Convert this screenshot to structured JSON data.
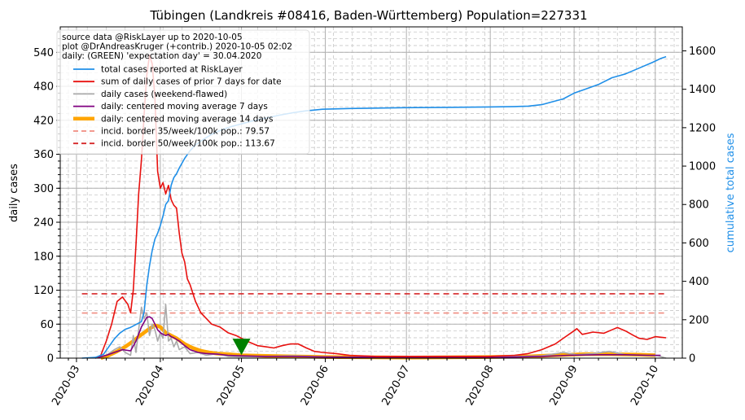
{
  "chart_data": {
    "type": "line",
    "title": "Tübingen (Landkreis #08416, Baden-Württemberg) Population=227331",
    "ylabel_left": "daily cases",
    "ylabel_right": "cumulative total cases",
    "ylim_left": [
      0,
      585
    ],
    "ylim_right": [
      0,
      1725
    ],
    "xlim": [
      "2020-02-24",
      "2020-10-11"
    ],
    "x_ticks": [
      "2020-03",
      "2020-04",
      "2020-05",
      "2020-06",
      "2020-07",
      "2020-08",
      "2020-09",
      "2020-10"
    ],
    "x_tick_dates": [
      "2020-03-01",
      "2020-04-01",
      "2020-05-01",
      "2020-06-01",
      "2020-07-01",
      "2020-08-01",
      "2020-09-01",
      "2020-10-01"
    ],
    "y_ticks_left": [
      0,
      60,
      120,
      180,
      240,
      300,
      360,
      420,
      480,
      540
    ],
    "y_ticks_right": [
      0,
      200,
      400,
      600,
      800,
      1000,
      1200,
      1400,
      1600
    ],
    "grid": true,
    "legend_placement": "top-left",
    "legend_header": [
      "source data @RiskLayer up to 2020-10-05",
      "plot @DrAndreasKruger (+contrib.) 2020-10-05 02:02",
      "daily: (GREEN) 'expectation day' = 30.04.2020"
    ],
    "series": [
      {
        "name": "total cases reported at RiskLayer",
        "axis": "right",
        "color": "#1f8fe8",
        "style": "solid",
        "points": [
          [
            "2020-03-03",
            0
          ],
          [
            "2020-03-08",
            4
          ],
          [
            "2020-03-11",
            20
          ],
          [
            "2020-03-13",
            60
          ],
          [
            "2020-03-15",
            100
          ],
          [
            "2020-03-17",
            130
          ],
          [
            "2020-03-19",
            150
          ],
          [
            "2020-03-21",
            160
          ],
          [
            "2020-03-23",
            175
          ],
          [
            "2020-03-25",
            190
          ],
          [
            "2020-03-26",
            240
          ],
          [
            "2020-03-27",
            380
          ],
          [
            "2020-03-28",
            480
          ],
          [
            "2020-03-29",
            560
          ],
          [
            "2020-03-30",
            620
          ],
          [
            "2020-03-31",
            650
          ],
          [
            "2020-04-01",
            690
          ],
          [
            "2020-04-02",
            740
          ],
          [
            "2020-04-03",
            800
          ],
          [
            "2020-04-04",
            820
          ],
          [
            "2020-04-05",
            900
          ],
          [
            "2020-04-06",
            940
          ],
          [
            "2020-04-07",
            960
          ],
          [
            "2020-04-08",
            990
          ],
          [
            "2020-04-10",
            1040
          ],
          [
            "2020-04-12",
            1080
          ],
          [
            "2020-04-14",
            1110
          ],
          [
            "2020-04-17",
            1140
          ],
          [
            "2020-04-20",
            1165
          ],
          [
            "2020-04-23",
            1185
          ],
          [
            "2020-04-27",
            1205
          ],
          [
            "2020-05-01",
            1220
          ],
          [
            "2020-05-05",
            1235
          ],
          [
            "2020-05-10",
            1250
          ],
          [
            "2020-05-15",
            1265
          ],
          [
            "2020-05-20",
            1278
          ],
          [
            "2020-05-25",
            1288
          ],
          [
            "2020-05-31",
            1296
          ],
          [
            "2020-06-10",
            1300
          ],
          [
            "2020-06-20",
            1302
          ],
          [
            "2020-06-30",
            1304
          ],
          [
            "2020-07-15",
            1306
          ],
          [
            "2020-07-31",
            1308
          ],
          [
            "2020-08-10",
            1310
          ],
          [
            "2020-08-15",
            1312
          ],
          [
            "2020-08-20",
            1320
          ],
          [
            "2020-08-24",
            1335
          ],
          [
            "2020-08-28",
            1350
          ],
          [
            "2020-09-01",
            1380
          ],
          [
            "2020-09-05",
            1400
          ],
          [
            "2020-09-10",
            1425
          ],
          [
            "2020-09-15",
            1460
          ],
          [
            "2020-09-20",
            1480
          ],
          [
            "2020-09-25",
            1510
          ],
          [
            "2020-09-30",
            1540
          ],
          [
            "2020-10-03",
            1560
          ],
          [
            "2020-10-05",
            1570
          ]
        ]
      },
      {
        "name": "sum of daily cases of prior 7 days for date",
        "axis": "left",
        "color": "#e8110f",
        "style": "solid",
        "points": [
          [
            "2020-03-08",
            0
          ],
          [
            "2020-03-10",
            5
          ],
          [
            "2020-03-12",
            30
          ],
          [
            "2020-03-14",
            60
          ],
          [
            "2020-03-16",
            100
          ],
          [
            "2020-03-18",
            108
          ],
          [
            "2020-03-20",
            95
          ],
          [
            "2020-03-21",
            80
          ],
          [
            "2020-03-22",
            120
          ],
          [
            "2020-03-23",
            200
          ],
          [
            "2020-03-24",
            290
          ],
          [
            "2020-03-25",
            350
          ],
          [
            "2020-03-26",
            430
          ],
          [
            "2020-03-27",
            500
          ],
          [
            "2020-03-28",
            535
          ],
          [
            "2020-03-29",
            520
          ],
          [
            "2020-03-30",
            460
          ],
          [
            "2020-03-31",
            330
          ],
          [
            "2020-04-01",
            300
          ],
          [
            "2020-04-02",
            310
          ],
          [
            "2020-04-03",
            290
          ],
          [
            "2020-04-04",
            305
          ],
          [
            "2020-04-05",
            280
          ],
          [
            "2020-04-06",
            270
          ],
          [
            "2020-04-07",
            265
          ],
          [
            "2020-04-08",
            220
          ],
          [
            "2020-04-09",
            185
          ],
          [
            "2020-04-10",
            170
          ],
          [
            "2020-04-11",
            140
          ],
          [
            "2020-04-12",
            130
          ],
          [
            "2020-04-14",
            100
          ],
          [
            "2020-04-16",
            80
          ],
          [
            "2020-04-18",
            70
          ],
          [
            "2020-04-20",
            60
          ],
          [
            "2020-04-23",
            55
          ],
          [
            "2020-04-26",
            45
          ],
          [
            "2020-04-29",
            40
          ],
          [
            "2020-05-01",
            35
          ],
          [
            "2020-05-04",
            28
          ],
          [
            "2020-05-07",
            22
          ],
          [
            "2020-05-10",
            20
          ],
          [
            "2020-05-13",
            18
          ],
          [
            "2020-05-16",
            22
          ],
          [
            "2020-05-19",
            25
          ],
          [
            "2020-05-22",
            25
          ],
          [
            "2020-05-25",
            18
          ],
          [
            "2020-05-28",
            12
          ],
          [
            "2020-05-31",
            10
          ],
          [
            "2020-06-05",
            8
          ],
          [
            "2020-06-10",
            5
          ],
          [
            "2020-06-20",
            3
          ],
          [
            "2020-07-01",
            3
          ],
          [
            "2020-07-15",
            3
          ],
          [
            "2020-07-31",
            3
          ],
          [
            "2020-08-10",
            5
          ],
          [
            "2020-08-15",
            8
          ],
          [
            "2020-08-20",
            15
          ],
          [
            "2020-08-25",
            25
          ],
          [
            "2020-08-28",
            35
          ],
          [
            "2020-08-31",
            45
          ],
          [
            "2020-09-02",
            52
          ],
          [
            "2020-09-04",
            42
          ],
          [
            "2020-09-08",
            46
          ],
          [
            "2020-09-12",
            44
          ],
          [
            "2020-09-15",
            50
          ],
          [
            "2020-09-17",
            54
          ],
          [
            "2020-09-20",
            48
          ],
          [
            "2020-09-23",
            40
          ],
          [
            "2020-09-25",
            35
          ],
          [
            "2020-09-28",
            33
          ],
          [
            "2020-10-01",
            38
          ],
          [
            "2020-10-03",
            37
          ],
          [
            "2020-10-05",
            36
          ]
        ]
      },
      {
        "name": "daily cases (weekend-flawed)",
        "axis": "left",
        "color": "#aaaaaa",
        "style": "solid",
        "points": [
          [
            "2020-03-08",
            0
          ],
          [
            "2020-03-12",
            5
          ],
          [
            "2020-03-15",
            15
          ],
          [
            "2020-03-17",
            20
          ],
          [
            "2020-03-19",
            10
          ],
          [
            "2020-03-21",
            5
          ],
          [
            "2020-03-22",
            40
          ],
          [
            "2020-03-23",
            10
          ],
          [
            "2020-03-24",
            50
          ],
          [
            "2020-03-25",
            90
          ],
          [
            "2020-03-26",
            70
          ],
          [
            "2020-03-27",
            80
          ],
          [
            "2020-03-28",
            40
          ],
          [
            "2020-03-29",
            60
          ],
          [
            "2020-03-30",
            50
          ],
          [
            "2020-03-31",
            30
          ],
          [
            "2020-04-01",
            45
          ],
          [
            "2020-04-02",
            35
          ],
          [
            "2020-04-03",
            95
          ],
          [
            "2020-04-04",
            30
          ],
          [
            "2020-04-05",
            35
          ],
          [
            "2020-04-06",
            20
          ],
          [
            "2020-04-07",
            30
          ],
          [
            "2020-04-08",
            15
          ],
          [
            "2020-04-10",
            20
          ],
          [
            "2020-04-12",
            8
          ],
          [
            "2020-04-15",
            10
          ],
          [
            "2020-04-18",
            5
          ],
          [
            "2020-04-22",
            8
          ],
          [
            "2020-04-26",
            3
          ],
          [
            "2020-05-01",
            2
          ],
          [
            "2020-05-10",
            3
          ],
          [
            "2020-05-20",
            4
          ],
          [
            "2020-06-01",
            2
          ],
          [
            "2020-07-01",
            1
          ],
          [
            "2020-08-01",
            2
          ],
          [
            "2020-08-20",
            4
          ],
          [
            "2020-08-28",
            10
          ],
          [
            "2020-09-02",
            6
          ],
          [
            "2020-09-08",
            8
          ],
          [
            "2020-09-14",
            12
          ],
          [
            "2020-09-20",
            6
          ],
          [
            "2020-09-26",
            5
          ],
          [
            "2020-10-02",
            4
          ],
          [
            "2020-10-05",
            0
          ]
        ]
      },
      {
        "name": "daily: centered moving average 7 days",
        "axis": "left",
        "color": "#800080",
        "style": "solid",
        "points": [
          [
            "2020-03-08",
            0
          ],
          [
            "2020-03-12",
            5
          ],
          [
            "2020-03-15",
            10
          ],
          [
            "2020-03-18",
            15
          ],
          [
            "2020-03-21",
            13
          ],
          [
            "2020-03-23",
            30
          ],
          [
            "2020-03-25",
            55
          ],
          [
            "2020-03-27",
            72
          ],
          [
            "2020-03-28",
            73
          ],
          [
            "2020-03-29",
            70
          ],
          [
            "2020-03-30",
            60
          ],
          [
            "2020-03-31",
            50
          ],
          [
            "2020-04-01",
            45
          ],
          [
            "2020-04-02",
            42
          ],
          [
            "2020-04-03",
            40
          ],
          [
            "2020-04-04",
            42
          ],
          [
            "2020-04-05",
            38
          ],
          [
            "2020-04-06",
            36
          ],
          [
            "2020-04-08",
            30
          ],
          [
            "2020-04-10",
            22
          ],
          [
            "2020-04-12",
            15
          ],
          [
            "2020-04-15",
            10
          ],
          [
            "2020-04-18",
            8
          ],
          [
            "2020-04-22",
            7
          ],
          [
            "2020-04-26",
            5
          ],
          [
            "2020-05-01",
            4
          ],
          [
            "2020-05-10",
            3
          ],
          [
            "2020-05-20",
            3
          ],
          [
            "2020-06-01",
            2
          ],
          [
            "2020-07-01",
            1
          ],
          [
            "2020-08-01",
            1
          ],
          [
            "2020-08-20",
            3
          ],
          [
            "2020-08-30",
            5
          ],
          [
            "2020-09-10",
            6
          ],
          [
            "2020-09-20",
            6
          ],
          [
            "2020-09-28",
            5
          ],
          [
            "2020-10-03",
            5
          ]
        ]
      },
      {
        "name": "daily: centered moving average 14 days",
        "axis": "left",
        "color": "#ffa500",
        "style": "thick",
        "points": [
          [
            "2020-03-10",
            0
          ],
          [
            "2020-03-13",
            5
          ],
          [
            "2020-03-16",
            12
          ],
          [
            "2020-03-19",
            20
          ],
          [
            "2020-03-22",
            30
          ],
          [
            "2020-03-24",
            38
          ],
          [
            "2020-03-26",
            45
          ],
          [
            "2020-03-28",
            52
          ],
          [
            "2020-03-30",
            58
          ],
          [
            "2020-04-01",
            55
          ],
          [
            "2020-04-03",
            45
          ],
          [
            "2020-04-05",
            40
          ],
          [
            "2020-04-07",
            35
          ],
          [
            "2020-04-10",
            25
          ],
          [
            "2020-04-13",
            18
          ],
          [
            "2020-04-16",
            13
          ],
          [
            "2020-04-19",
            10
          ],
          [
            "2020-04-22",
            8
          ],
          [
            "2020-04-26",
            7
          ],
          [
            "2020-05-01",
            5
          ],
          [
            "2020-05-10",
            4
          ],
          [
            "2020-05-20",
            3
          ],
          [
            "2020-06-01",
            2
          ],
          [
            "2020-07-01",
            1
          ],
          [
            "2020-08-01",
            2
          ],
          [
            "2020-08-15",
            3
          ],
          [
            "2020-08-25",
            5
          ],
          [
            "2020-09-05",
            7
          ],
          [
            "2020-09-15",
            7
          ],
          [
            "2020-09-25",
            6
          ],
          [
            "2020-10-01",
            5
          ]
        ]
      },
      {
        "name": "incid. border 35/week/100k pop.: 79.57",
        "axis": "left",
        "color": "#f08c80",
        "style": "dashed",
        "points": [
          [
            "2020-03-03",
            79.57
          ],
          [
            "2020-10-05",
            79.57
          ]
        ]
      },
      {
        "name": "incid. border 50/week/100k pop.: 113.67",
        "axis": "left",
        "color": "#d62728",
        "style": "dashed",
        "points": [
          [
            "2020-03-03",
            113.67
          ],
          [
            "2020-10-05",
            113.67
          ]
        ]
      }
    ],
    "annotations": [
      {
        "type": "marker",
        "shape": "triangle-down",
        "color": "#008000",
        "date": "2020-05-01",
        "value": 20
      }
    ]
  }
}
